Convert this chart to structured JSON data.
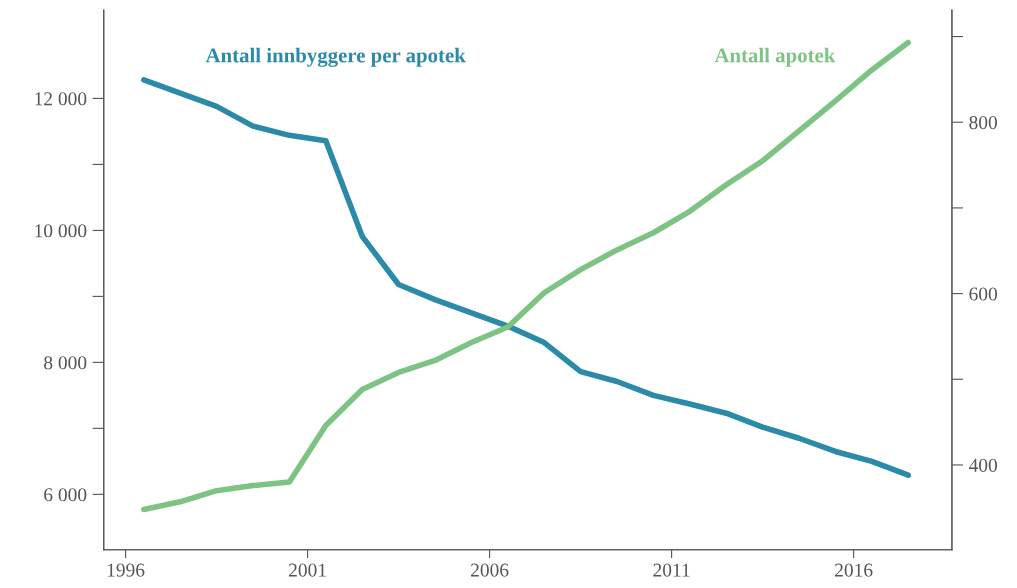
{
  "chart_data": {
    "type": "line",
    "x": [
      1996.5,
      1997.5,
      1998.5,
      1999.5,
      2000.5,
      2001.5,
      2002.5,
      2003.5,
      2004.5,
      2005.5,
      2006.5,
      2007.5,
      2008.5,
      2009.5,
      2010.5,
      2011.5,
      2012.5,
      2013.5,
      2014.5,
      2015.5,
      2016.5,
      2017.5
    ],
    "xlim": [
      1995.4,
      2018.7
    ],
    "xticks": [
      1996,
      2001,
      2006,
      2011,
      2016
    ],
    "ylim": [
      5160,
      13340
    ],
    "yticks": [
      {
        "value": 6000,
        "label": "6 000"
      },
      {
        "value": 7000,
        "label": null
      },
      {
        "value": 8000,
        "label": "8 000"
      },
      {
        "value": 9000,
        "label": null
      },
      {
        "value": 10000,
        "label": "10 000"
      },
      {
        "value": 11000,
        "label": null
      },
      {
        "value": 12000,
        "label": "12 000"
      }
    ],
    "y2lim": [
      301,
      931
    ],
    "y2ticks": [
      400,
      {
        "value": 500,
        "label": null
      },
      600,
      {
        "value": 700,
        "label": null
      },
      800,
      {
        "value": 900,
        "label": null
      }
    ],
    "grid": false,
    "legend": false,
    "series": [
      {
        "name": "Antall innbyggere per apotek",
        "color": "#2a8aa8",
        "values": [
          12280,
          12080,
          11880,
          11580,
          11440,
          11360,
          9910,
          9180,
          8950,
          8750,
          8550,
          8300,
          7860,
          7710,
          7500,
          7370,
          7230,
          7020,
          6850,
          6650,
          6500,
          6290
        ]
      },
      {
        "name": "Antall apotek",
        "color": "#7dc383",
        "axis": "y2",
        "values": [
          348,
          357,
          370,
          376,
          380,
          446,
          488,
          508,
          522,
          543,
          561,
          601,
          628,
          651,
          671,
          696,
          727,
          755,
          790,
          825,
          861,
          893
        ]
      }
    ]
  }
}
